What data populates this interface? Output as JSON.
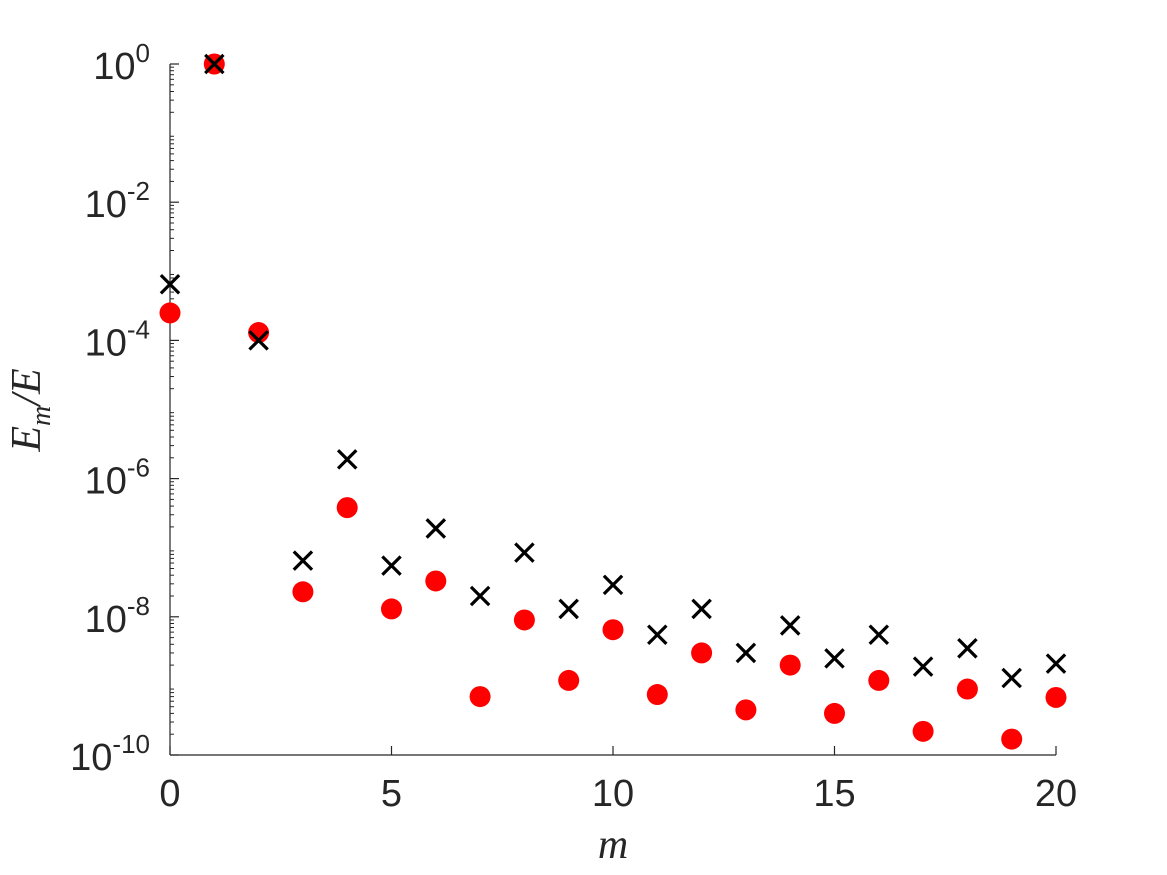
{
  "chart_data": {
    "type": "scatter",
    "x_label": "m",
    "y_label": {
      "main": "E",
      "sub": "m",
      "tail": "/E"
    },
    "x_ticks": [
      "0",
      "5",
      "10",
      "15",
      "20"
    ],
    "y_ticks": [
      {
        "base": "10",
        "exp": "0"
      },
      {
        "base": "10",
        "exp": "-2"
      },
      {
        "base": "10",
        "exp": "-4"
      },
      {
        "base": "10",
        "exp": "-6"
      },
      {
        "base": "10",
        "exp": "-8"
      },
      {
        "base": "10",
        "exp": "-10"
      }
    ],
    "xlim": [
      0,
      20
    ],
    "ylim": [
      1e-10,
      1
    ],
    "y_scale": "log",
    "grid": false,
    "series": [
      {
        "marker": "circle",
        "color": "#ff0000",
        "x": [
          0,
          1,
          2,
          3,
          4,
          5,
          6,
          7,
          8,
          9,
          10,
          11,
          12,
          13,
          14,
          15,
          16,
          17,
          18,
          19,
          20
        ],
        "y": [
          0.00025,
          1.0,
          0.00013,
          2.3e-08,
          3.8e-07,
          1.3e-08,
          3.3e-08,
          7e-10,
          9e-09,
          1.2e-09,
          6.5e-09,
          7.5e-10,
          3e-09,
          4.5e-10,
          2e-09,
          4e-10,
          1.2e-09,
          2.2e-10,
          9e-10,
          1.7e-10,
          6.8e-10
        ]
      },
      {
        "marker": "cross",
        "color": "#000000",
        "x": [
          0,
          1,
          2,
          3,
          4,
          5,
          6,
          7,
          8,
          9,
          10,
          11,
          12,
          13,
          14,
          15,
          16,
          17,
          18,
          19,
          20
        ],
        "y": [
          0.00065,
          1.0,
          0.0001,
          6.5e-08,
          1.9e-06,
          5.5e-08,
          1.9e-07,
          2e-08,
          8.5e-08,
          1.3e-08,
          2.9e-08,
          5.5e-09,
          1.3e-08,
          3e-09,
          7.5e-09,
          2.5e-09,
          5.5e-09,
          1.9e-09,
          3.5e-09,
          1.3e-09,
          2.1e-09
        ]
      }
    ]
  }
}
